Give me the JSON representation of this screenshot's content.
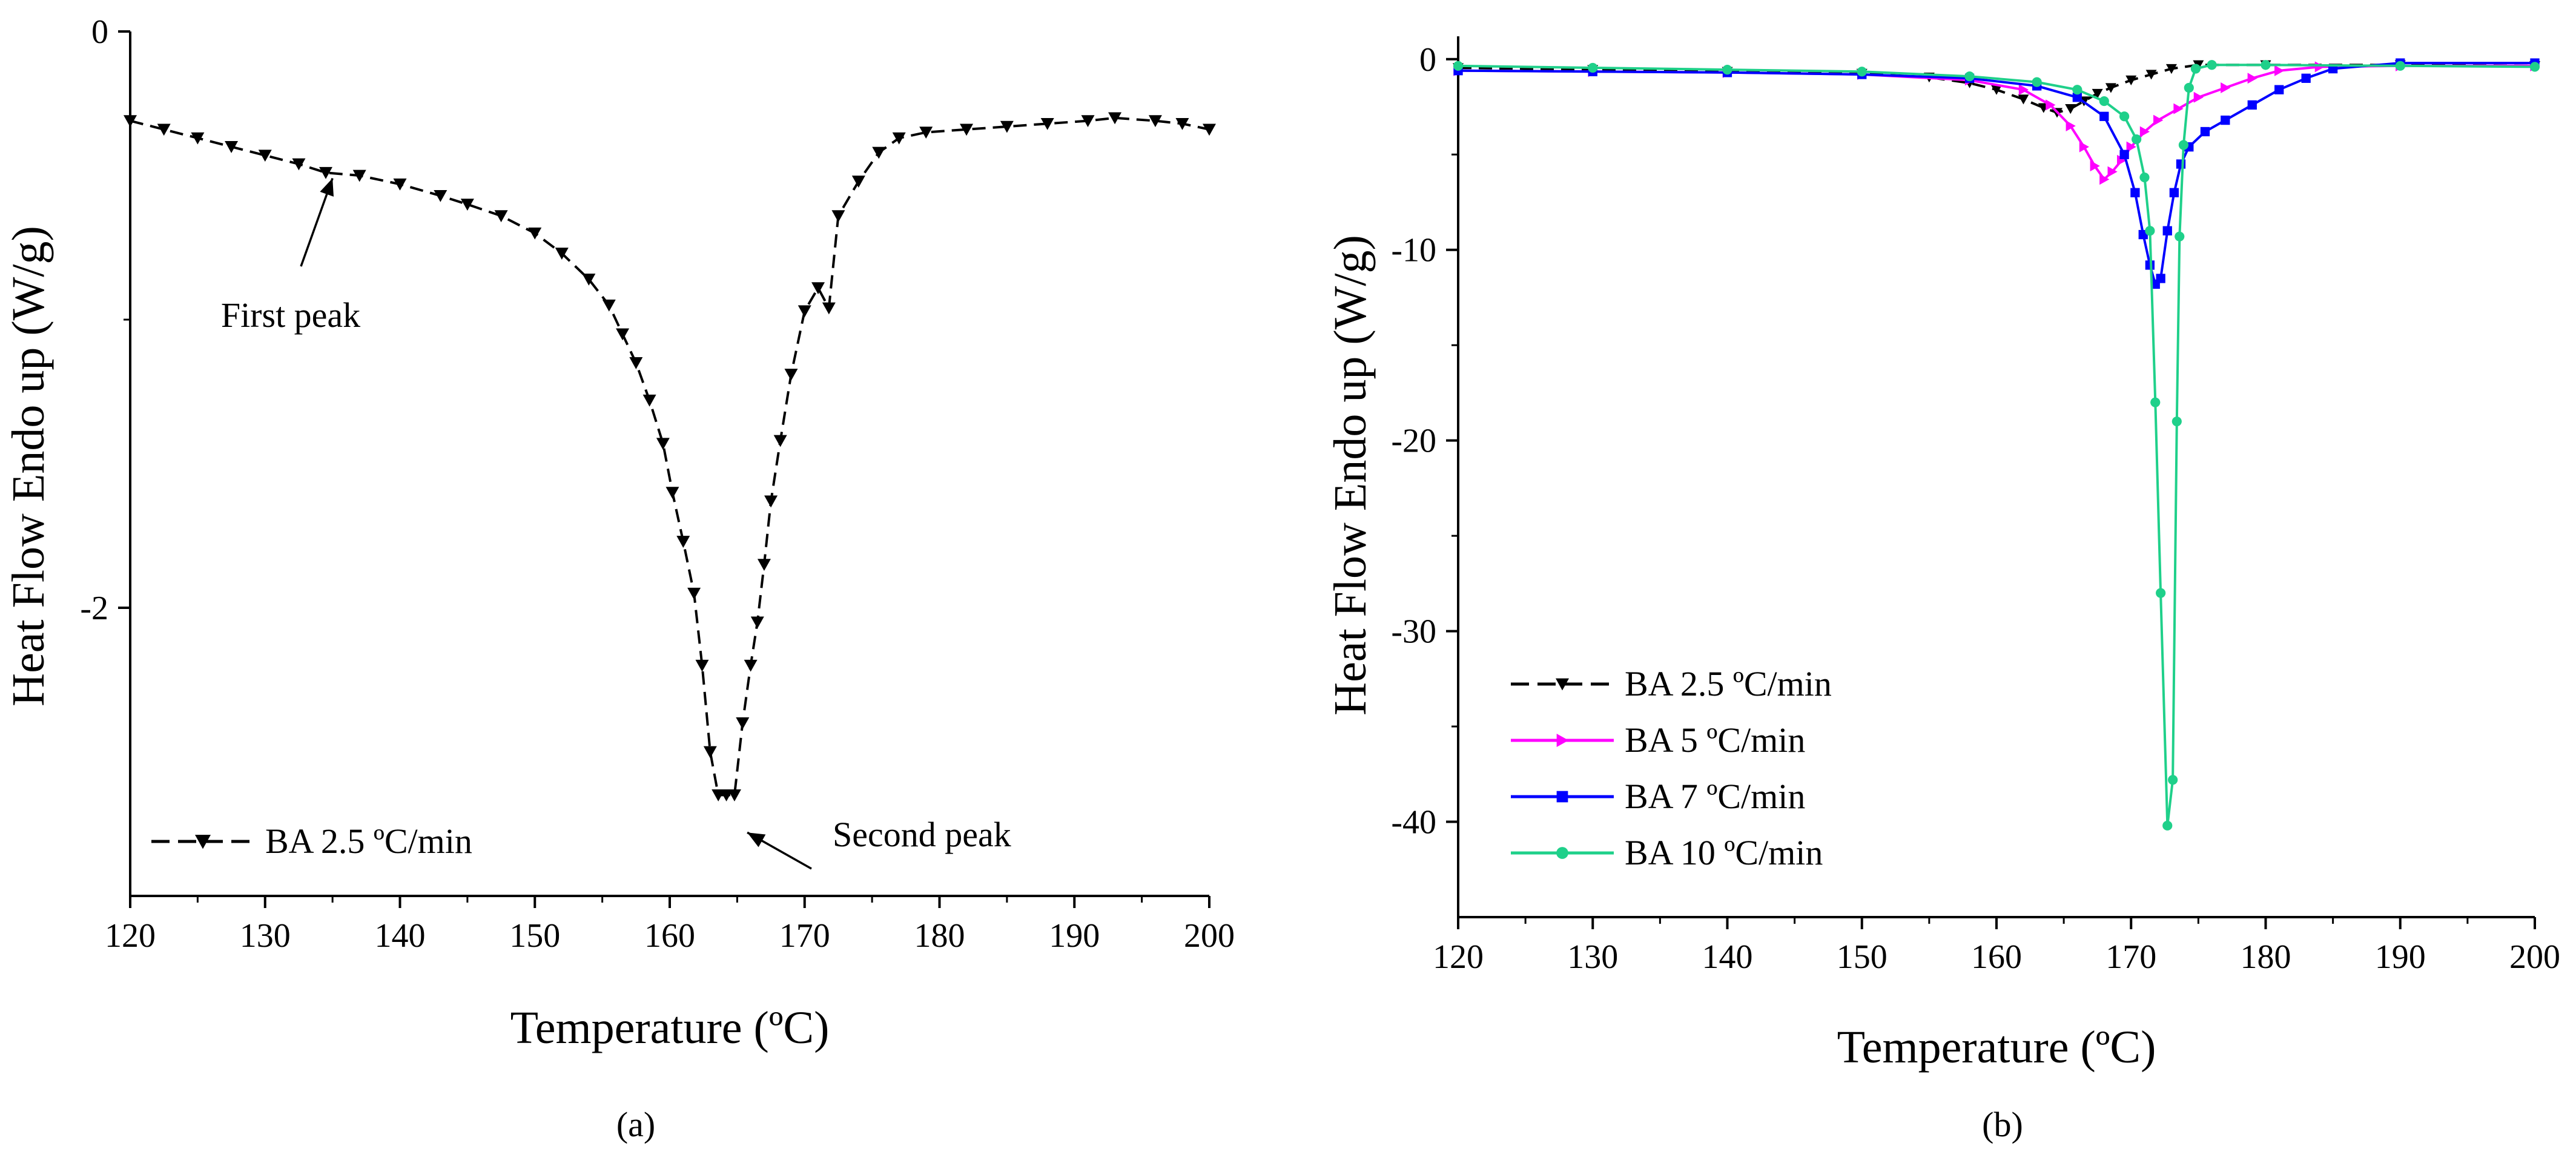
{
  "chart_data": [
    {
      "panel_label": "(a)",
      "type": "line",
      "title": "",
      "xlabel": "Temperature (ºC)",
      "ylabel": "Heat Flow Endo up (W/g)",
      "xlim": [
        120,
        200
      ],
      "ylim": [
        -3,
        0
      ],
      "xticks": [
        120,
        130,
        140,
        150,
        160,
        170,
        180,
        190,
        200
      ],
      "yticks": [
        0,
        -2
      ],
      "ytick_labels": [
        "0",
        "-2"
      ],
      "grid": false,
      "legend_position": "bottom-left",
      "series": [
        {
          "name": "BA 2.5 ºC/min",
          "color": "#000000",
          "line_style": "dashed",
          "marker": "triangle-down",
          "x": [
            120,
            122.5,
            125,
            127.5,
            130,
            132.5,
            134.5,
            137,
            140,
            143,
            145,
            147.5,
            150,
            152,
            154,
            155.5,
            156.5,
            157.5,
            158.5,
            159.5,
            160.2,
            161,
            161.8,
            162.4,
            163,
            163.6,
            164.2,
            164.8,
            165.4,
            166,
            166.5,
            167,
            167.5,
            168.2,
            169,
            170,
            171,
            171.8,
            172.5,
            174,
            175.5,
            177,
            179,
            182,
            185,
            188,
            191,
            193,
            196,
            198,
            200
          ],
          "y": [
            -0.31,
            -0.34,
            -0.37,
            -0.4,
            -0.43,
            -0.46,
            -0.49,
            -0.5,
            -0.53,
            -0.57,
            -0.6,
            -0.64,
            -0.7,
            -0.77,
            -0.86,
            -0.95,
            -1.05,
            -1.15,
            -1.28,
            -1.43,
            -1.6,
            -1.77,
            -1.95,
            -2.2,
            -2.5,
            -2.65,
            -2.65,
            -2.65,
            -2.4,
            -2.2,
            -2.05,
            -1.85,
            -1.63,
            -1.42,
            -1.19,
            -0.97,
            -0.89,
            -0.96,
            -0.64,
            -0.52,
            -0.42,
            -0.37,
            -0.35,
            -0.34,
            -0.33,
            -0.32,
            -0.31,
            -0.3,
            -0.31,
            -0.32,
            -0.34
          ]
        }
      ],
      "annotations": [
        {
          "text": "First peak",
          "x": 135,
          "y": -0.48
        },
        {
          "text": "Second peak",
          "x": 165.3,
          "y": -2.7
        }
      ]
    },
    {
      "panel_label": "(b)",
      "type": "line",
      "title": "",
      "xlabel": "Temperature (ºC)",
      "ylabel": "Heat Flow Endo up (W/g)",
      "xlim": [
        120,
        200
      ],
      "ylim": [
        -45,
        1.2
      ],
      "xticks": [
        120,
        130,
        140,
        150,
        160,
        170,
        180,
        190,
        200
      ],
      "yticks": [
        0,
        -10,
        -20,
        -30,
        -40
      ],
      "ytick_labels": [
        "0",
        "-10",
        "-20",
        "-30",
        "-40"
      ],
      "grid": false,
      "legend_position": "bottom-left",
      "series": [
        {
          "name": "BA 2.5 ºC/min",
          "color": "#000000",
          "line_style": "dashed",
          "marker": "triangle-down",
          "x": [
            120,
            130,
            140,
            150,
            155,
            158,
            160,
            162,
            163.5,
            164.5,
            165.5,
            166.5,
            167.5,
            168.5,
            170,
            171.5,
            173,
            175,
            180,
            190,
            200
          ],
          "y": [
            -0.45,
            -0.55,
            -0.65,
            -0.75,
            -0.95,
            -1.25,
            -1.6,
            -2.1,
            -2.55,
            -2.8,
            -2.6,
            -2.2,
            -1.8,
            -1.5,
            -1.1,
            -0.8,
            -0.5,
            -0.3,
            -0.3,
            -0.3,
            -0.35
          ]
        },
        {
          "name": "BA 5 ºC/min",
          "color": "#ff00ff",
          "line_style": "solid",
          "marker": "triangle-right",
          "x": [
            120,
            130,
            140,
            150,
            158,
            162,
            164,
            165.5,
            166.5,
            167.3,
            168,
            168.6,
            169.3,
            170,
            171,
            172,
            173.5,
            175,
            177,
            179,
            181,
            184,
            190,
            200
          ],
          "y": [
            -0.6,
            -0.65,
            -0.7,
            -0.8,
            -1.1,
            -1.6,
            -2.4,
            -3.5,
            -4.6,
            -5.6,
            -6.3,
            -5.9,
            -5.3,
            -4.6,
            -3.8,
            -3.2,
            -2.6,
            -2.0,
            -1.5,
            -1.0,
            -0.6,
            -0.4,
            -0.35,
            -0.35
          ]
        },
        {
          "name": "BA 7 ºC/min",
          "color": "#0000ff",
          "line_style": "solid",
          "marker": "square",
          "x": [
            120,
            130,
            140,
            150,
            158,
            163,
            166,
            168,
            169.5,
            170.3,
            170.9,
            171.4,
            171.8,
            172.2,
            172.7,
            173.2,
            173.7,
            174.3,
            175.5,
            177,
            179,
            181,
            183,
            185,
            190,
            200
          ],
          "y": [
            -0.6,
            -0.65,
            -0.7,
            -0.8,
            -1.0,
            -1.4,
            -2.0,
            -3.0,
            -5.0,
            -7.0,
            -9.2,
            -10.8,
            -11.8,
            -11.5,
            -9.0,
            -7.0,
            -5.5,
            -4.6,
            -3.8,
            -3.2,
            -2.4,
            -1.6,
            -1.0,
            -0.5,
            -0.2,
            -0.2
          ]
        },
        {
          "name": "BA 10 ºC/min",
          "color": "#1fd08a",
          "line_style": "solid",
          "marker": "circle",
          "x": [
            120,
            130,
            140,
            150,
            158,
            163,
            166,
            168,
            169.5,
            170.4,
            171,
            171.4,
            171.8,
            172.2,
            172.7,
            173.1,
            173.4,
            173.6,
            173.9,
            174.3,
            174.8,
            176,
            180,
            190,
            200
          ],
          "y": [
            -0.35,
            -0.45,
            -0.55,
            -0.65,
            -0.9,
            -1.2,
            -1.6,
            -2.2,
            -3.0,
            -4.2,
            -6.2,
            -9.0,
            -18.0,
            -28.0,
            -40.2,
            -37.8,
            -19.0,
            -9.3,
            -4.5,
            -1.5,
            -0.5,
            -0.3,
            -0.3,
            -0.35,
            -0.4
          ]
        }
      ],
      "annotations": []
    }
  ]
}
